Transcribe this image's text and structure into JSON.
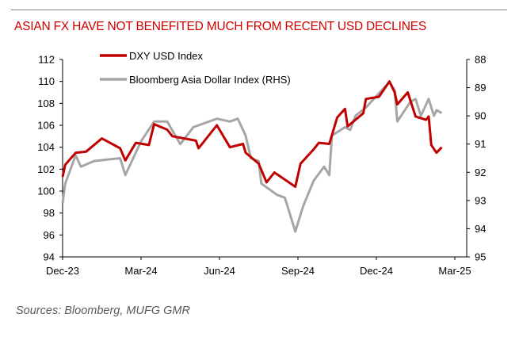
{
  "chart_data": {
    "type": "line",
    "title": "ASIAN FX HAVE NOT BENEFITED MUCH FROM RECENT USD DECLINES",
    "source": "Sources:  Bloomberg, MUFG GMR",
    "x_unit": "months since Dec-23",
    "x_ticks": [
      {
        "value": 0,
        "label": "Dec-23"
      },
      {
        "value": 3,
        "label": "Mar-24"
      },
      {
        "value": 6,
        "label": "Jun-24"
      },
      {
        "value": 9,
        "label": "Sep-24"
      },
      {
        "value": 12,
        "label": "Dec-24"
      },
      {
        "value": 15,
        "label": "Mar-25"
      }
    ],
    "xlim": [
      0,
      15.5
    ],
    "y_left": {
      "ylim": [
        94,
        112
      ],
      "ticks": [
        94,
        96,
        98,
        100,
        102,
        104,
        106,
        108,
        110,
        112
      ]
    },
    "y_right": {
      "ylim": [
        88,
        95
      ],
      "inverted": true,
      "ticks": [
        88,
        89,
        90,
        91,
        92,
        93,
        94,
        95
      ]
    },
    "legend_position": "top-left",
    "series": [
      {
        "name": "DXY USD Index",
        "axis": "left",
        "color": "#c00000",
        "x": [
          0.0,
          0.1,
          0.5,
          0.9,
          1.5,
          2.2,
          2.4,
          2.8,
          3.3,
          3.5,
          4.0,
          4.2,
          5.1,
          5.2,
          5.9,
          6.4,
          6.9,
          7.0,
          7.5,
          7.8,
          8.1,
          8.9,
          9.1,
          9.6,
          9.8,
          10.2,
          10.5,
          10.8,
          10.9,
          11.5,
          11.6,
          12.1,
          12.5,
          12.7,
          12.8,
          13.2,
          13.5,
          13.9,
          14.0,
          14.1,
          14.3,
          14.5
        ],
        "y": [
          101.3,
          102.4,
          103.5,
          103.6,
          104.8,
          103.9,
          102.8,
          104.4,
          104.2,
          106.1,
          105.6,
          105.0,
          104.6,
          103.9,
          106.0,
          104.0,
          104.3,
          103.5,
          102.5,
          100.8,
          101.7,
          100.4,
          102.5,
          103.8,
          104.4,
          104.3,
          106.7,
          107.5,
          105.9,
          107.1,
          108.4,
          108.6,
          110.0,
          109.0,
          107.9,
          109.0,
          106.8,
          106.5,
          106.8,
          104.2,
          103.5,
          104.0
        ]
      },
      {
        "name": "Bloomberg Asia Dollar Index (RHS)",
        "axis": "right",
        "color": "#a6a6a6",
        "x": [
          0.0,
          0.1,
          0.5,
          0.7,
          1.2,
          2.2,
          2.4,
          2.7,
          3.0,
          3.5,
          4.0,
          4.5,
          5.0,
          5.9,
          6.4,
          6.7,
          7.0,
          7.2,
          7.5,
          7.6,
          8.2,
          8.5,
          8.9,
          9.2,
          9.6,
          10.0,
          10.2,
          10.3,
          10.8,
          11.0,
          11.2,
          11.6,
          12.1,
          12.5,
          12.7,
          12.8,
          13.3,
          13.5,
          13.7,
          14.0,
          14.2,
          14.3,
          14.5
        ],
        "y": [
          93.1,
          92.4,
          91.4,
          91.8,
          91.6,
          91.5,
          92.1,
          91.5,
          90.9,
          90.2,
          90.2,
          91.0,
          90.4,
          90.1,
          90.2,
          90.1,
          90.7,
          91.5,
          91.6,
          92.4,
          92.8,
          92.9,
          94.1,
          93.2,
          92.3,
          91.8,
          92.1,
          90.7,
          90.4,
          90.5,
          90.0,
          89.7,
          89.2,
          88.8,
          89.1,
          90.2,
          89.5,
          89.4,
          90.0,
          89.4,
          90.0,
          89.8,
          89.9
        ]
      }
    ]
  }
}
